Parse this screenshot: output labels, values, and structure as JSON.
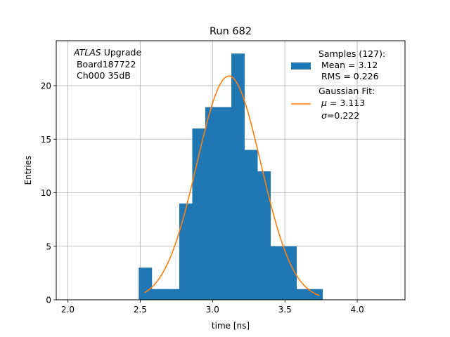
{
  "chart_data": {
    "type": "histogram",
    "title": "Run 682",
    "xlabel": "time [ns]",
    "ylabel": "Entries",
    "xlim": [
      1.92,
      4.33
    ],
    "ylim": [
      0,
      24.2
    ],
    "xticks": [
      "2.0",
      "2.5",
      "3.0",
      "3.5",
      "4.0"
    ],
    "yticks": [
      "0",
      "5",
      "10",
      "15",
      "20"
    ],
    "grid": true,
    "bins": [
      {
        "x0": 2.49,
        "x1": 2.58,
        "count": 3
      },
      {
        "x0": 2.58,
        "x1": 2.67,
        "count": 1
      },
      {
        "x0": 2.67,
        "x1": 2.77,
        "count": 1
      },
      {
        "x0": 2.77,
        "x1": 2.86,
        "count": 9
      },
      {
        "x0": 2.86,
        "x1": 2.95,
        "count": 16
      },
      {
        "x0": 2.95,
        "x1": 3.04,
        "count": 18
      },
      {
        "x0": 3.04,
        "x1": 3.13,
        "count": 18
      },
      {
        "x0": 3.13,
        "x1": 3.22,
        "count": 23
      },
      {
        "x0": 3.22,
        "x1": 3.31,
        "count": 14
      },
      {
        "x0": 3.31,
        "x1": 3.4,
        "count": 12
      },
      {
        "x0": 3.4,
        "x1": 3.49,
        "count": 5
      },
      {
        "x0": 3.49,
        "x1": 3.58,
        "count": 5
      },
      {
        "x0": 3.58,
        "x1": 3.67,
        "count": 1
      },
      {
        "x0": 3.67,
        "x1": 3.76,
        "count": 1
      }
    ],
    "fit": {
      "mu": 3.113,
      "sigma": 0.222,
      "amplitude": 20.9,
      "xmin": 2.53,
      "xmax": 3.74
    },
    "bar_color": "#1f77b4",
    "fit_color": "#ff7f0e",
    "annotation": {
      "atlas": "ATLAS",
      "upgrade": " Upgrade",
      "line2": " Board187722",
      "line3": " Ch000 35dB"
    },
    "legend": {
      "placement": "top-right",
      "samples": {
        "line1": "Samples (127):",
        "line2": " Mean = 3.12",
        "line3": " RMS = 0.226"
      },
      "fit": {
        "line1": "Gaussian Fit:",
        "mu_sym": "μ",
        "mu_val": " = 3.113",
        "sigma_sym": "σ",
        "sigma_val": "=0.222"
      }
    }
  }
}
